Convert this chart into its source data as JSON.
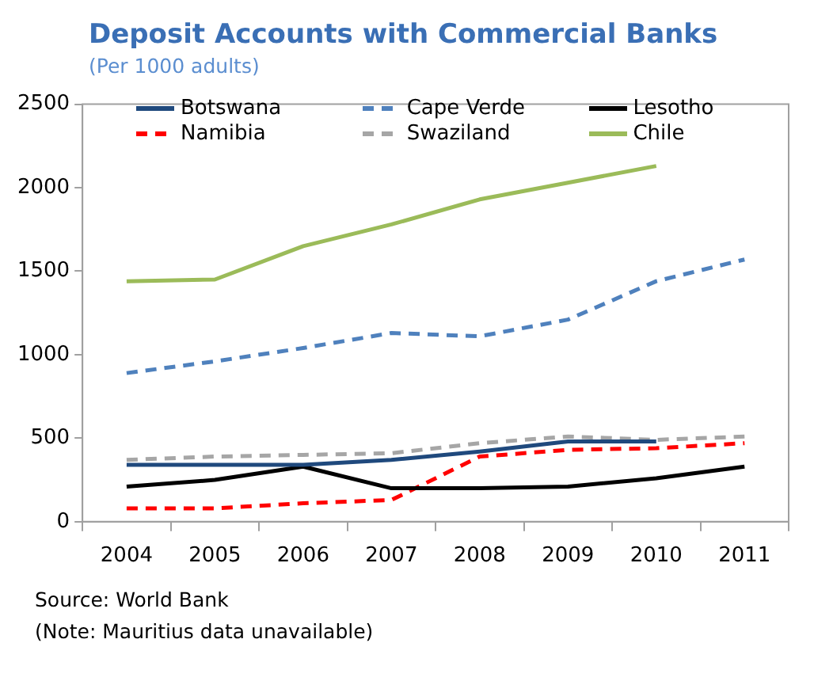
{
  "chart_data": {
    "type": "line",
    "title": "Deposit Accounts with Commercial Banks",
    "subtitle": "(Per 1000 adults)",
    "categories": [
      "2004",
      "2005",
      "2006",
      "2007",
      "2008",
      "2009",
      "2010",
      "2011"
    ],
    "series": [
      {
        "name": "Botswana",
        "color": "#1f497d",
        "line_style": "solid",
        "values": [
          340,
          340,
          340,
          370,
          420,
          480,
          480,
          null
        ]
      },
      {
        "name": "Cape Verde",
        "color": "#4f81bd",
        "line_style": "dashed",
        "values": [
          890,
          960,
          1040,
          1130,
          1110,
          1210,
          1440,
          1570
        ]
      },
      {
        "name": "Lesotho",
        "color": "#000000",
        "line_style": "solid",
        "values": [
          210,
          250,
          330,
          200,
          200,
          210,
          260,
          330
        ]
      },
      {
        "name": "Namibia",
        "color": "#ff0000",
        "line_style": "dashed",
        "values": [
          80,
          80,
          110,
          130,
          390,
          430,
          440,
          470
        ]
      },
      {
        "name": "Swaziland",
        "color": "#a6a6a6",
        "line_style": "dashed",
        "values": [
          370,
          390,
          400,
          410,
          470,
          510,
          490,
          510
        ]
      },
      {
        "name": "Chile",
        "color": "#9bbb59",
        "line_style": "solid",
        "values": [
          1440,
          1450,
          1650,
          1780,
          1930,
          2030,
          2130,
          null
        ]
      }
    ],
    "ylim": [
      0,
      2500
    ],
    "yticks": [
      0,
      500,
      1000,
      1500,
      2000,
      2500
    ],
    "grid": false,
    "legend": "top",
    "marker": "none",
    "annotations": [
      "Source: World Bank",
      "(Note: Mauritius data unavailable)"
    ]
  }
}
